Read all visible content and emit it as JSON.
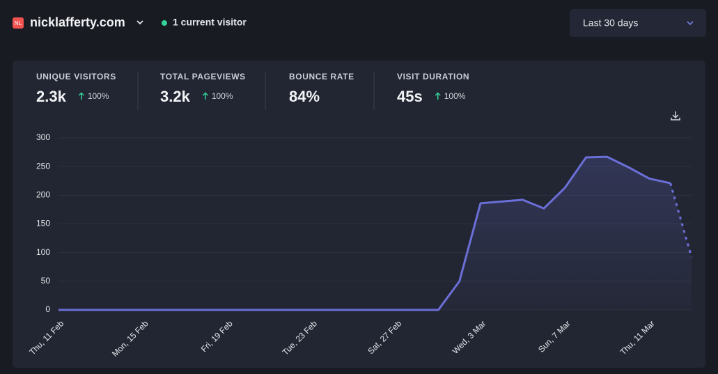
{
  "header": {
    "logo": "NL",
    "site": "nicklafferty.com",
    "visitors": "1 current visitor",
    "period": "Last 30 days"
  },
  "stats": [
    {
      "label": "UNIQUE VISITORS",
      "value": "2.3k",
      "change": "100%"
    },
    {
      "label": "TOTAL PAGEVIEWS",
      "value": "3.2k",
      "change": "100%"
    },
    {
      "label": "BOUNCE RATE",
      "value": "84%"
    },
    {
      "label": "VISIT DURATION",
      "value": "45s",
      "change": "100%"
    }
  ],
  "chart_data": {
    "type": "line",
    "categories": [
      "Thu, 11 Feb",
      null,
      null,
      null,
      "Mon, 15 Feb",
      null,
      null,
      null,
      "Fri, 19 Feb",
      null,
      null,
      null,
      "Tue, 23 Feb",
      null,
      null,
      null,
      "Sat, 27 Feb",
      null,
      null,
      null,
      "Wed, 3 Mar",
      null,
      null,
      null,
      "Sun, 7 Mar",
      null,
      null,
      null,
      "Thu, 11 Mar",
      null,
      null
    ],
    "values": [
      0,
      0,
      0,
      0,
      0,
      0,
      0,
      0,
      0,
      0,
      0,
      0,
      0,
      0,
      0,
      0,
      0,
      0,
      0,
      50,
      186,
      189,
      192,
      177,
      213,
      266,
      267,
      249,
      229,
      221,
      92
    ],
    "color": "#6b6fd8",
    "ylim": [
      0,
      300
    ],
    "yticks": [
      0,
      50,
      100,
      150,
      200,
      250,
      300
    ],
    "grid": true
  }
}
